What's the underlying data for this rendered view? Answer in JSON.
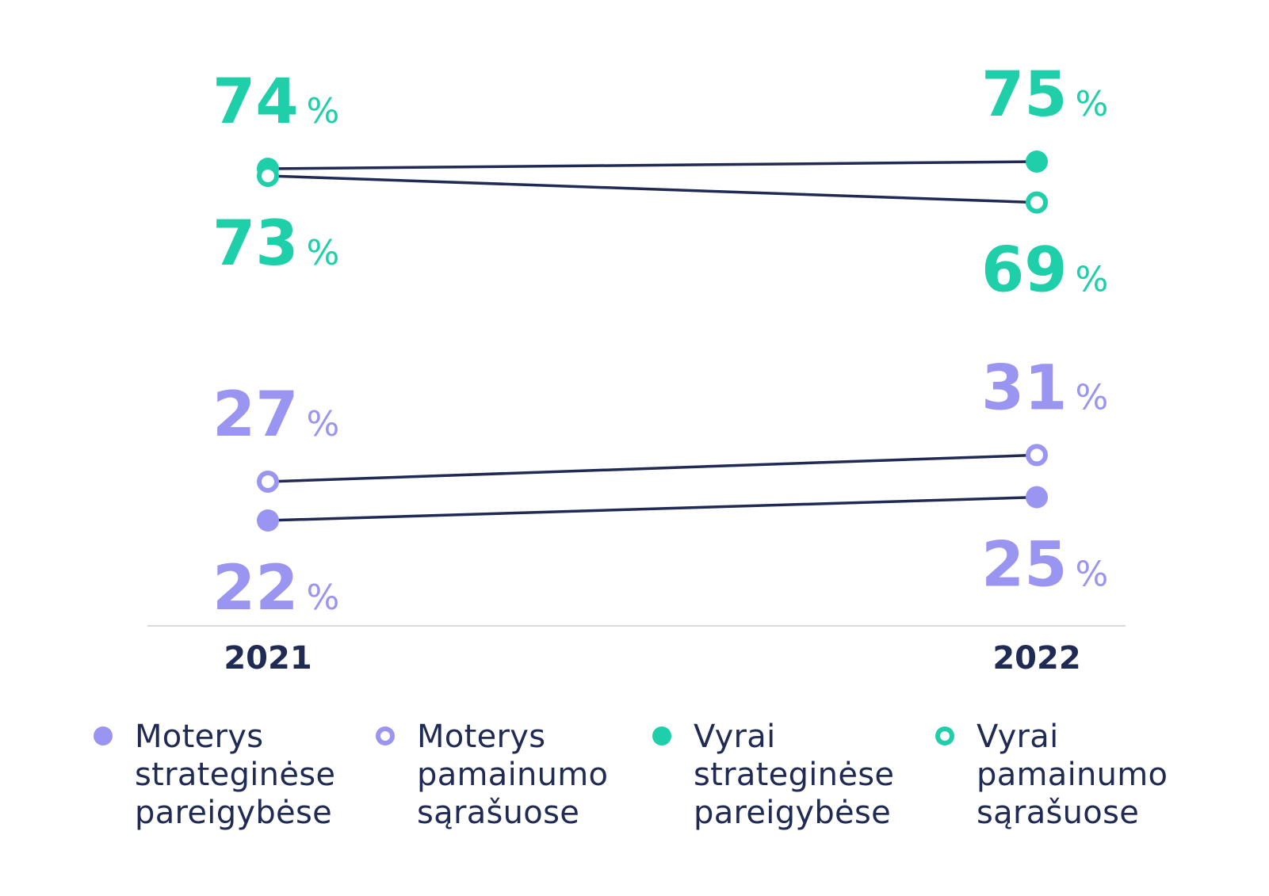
{
  "colors": {
    "women": "#9b95f2",
    "men": "#1ecfaa",
    "line": "#1f2a55",
    "axis": "#d9d9d9",
    "text": "#1f2a55"
  },
  "chart_data": {
    "type": "line",
    "categories": [
      "2021",
      "2022"
    ],
    "ylim": [
      0,
      100
    ],
    "value_suffix": "%",
    "grid": false,
    "legend_position": "bottom",
    "series": [
      {
        "name": "Vyrai strateginėse pareigybėse",
        "group": "men",
        "marker": "filled",
        "values": [
          74,
          75
        ],
        "label_side": [
          "above",
          "above"
        ]
      },
      {
        "name": "Vyrai pamainumo sąrašuose",
        "group": "men",
        "marker": "hollow",
        "values": [
          73,
          69
        ],
        "label_side": [
          "below",
          "below"
        ]
      },
      {
        "name": "Moterys pamainumo sąrašuose",
        "group": "women",
        "marker": "hollow",
        "values": [
          27,
          31
        ],
        "label_side": [
          "above",
          "above"
        ]
      },
      {
        "name": "Moterys strateginėse pareigybėse",
        "group": "women",
        "marker": "filled",
        "values": [
          22,
          25
        ],
        "label_side": [
          "below",
          "below"
        ]
      }
    ]
  },
  "legend": [
    {
      "label": "Moterys\nstrateginėse\npareigybėse",
      "group": "women",
      "marker": "filled"
    },
    {
      "label": "Moterys\npamainumo\nsąrašuose",
      "group": "women",
      "marker": "hollow"
    },
    {
      "label": "Vyrai\nstrateginėse\npareigybėse",
      "group": "men",
      "marker": "filled"
    },
    {
      "label": "Vyrai\npamainumo\nsąrašuose",
      "group": "men",
      "marker": "hollow"
    }
  ]
}
